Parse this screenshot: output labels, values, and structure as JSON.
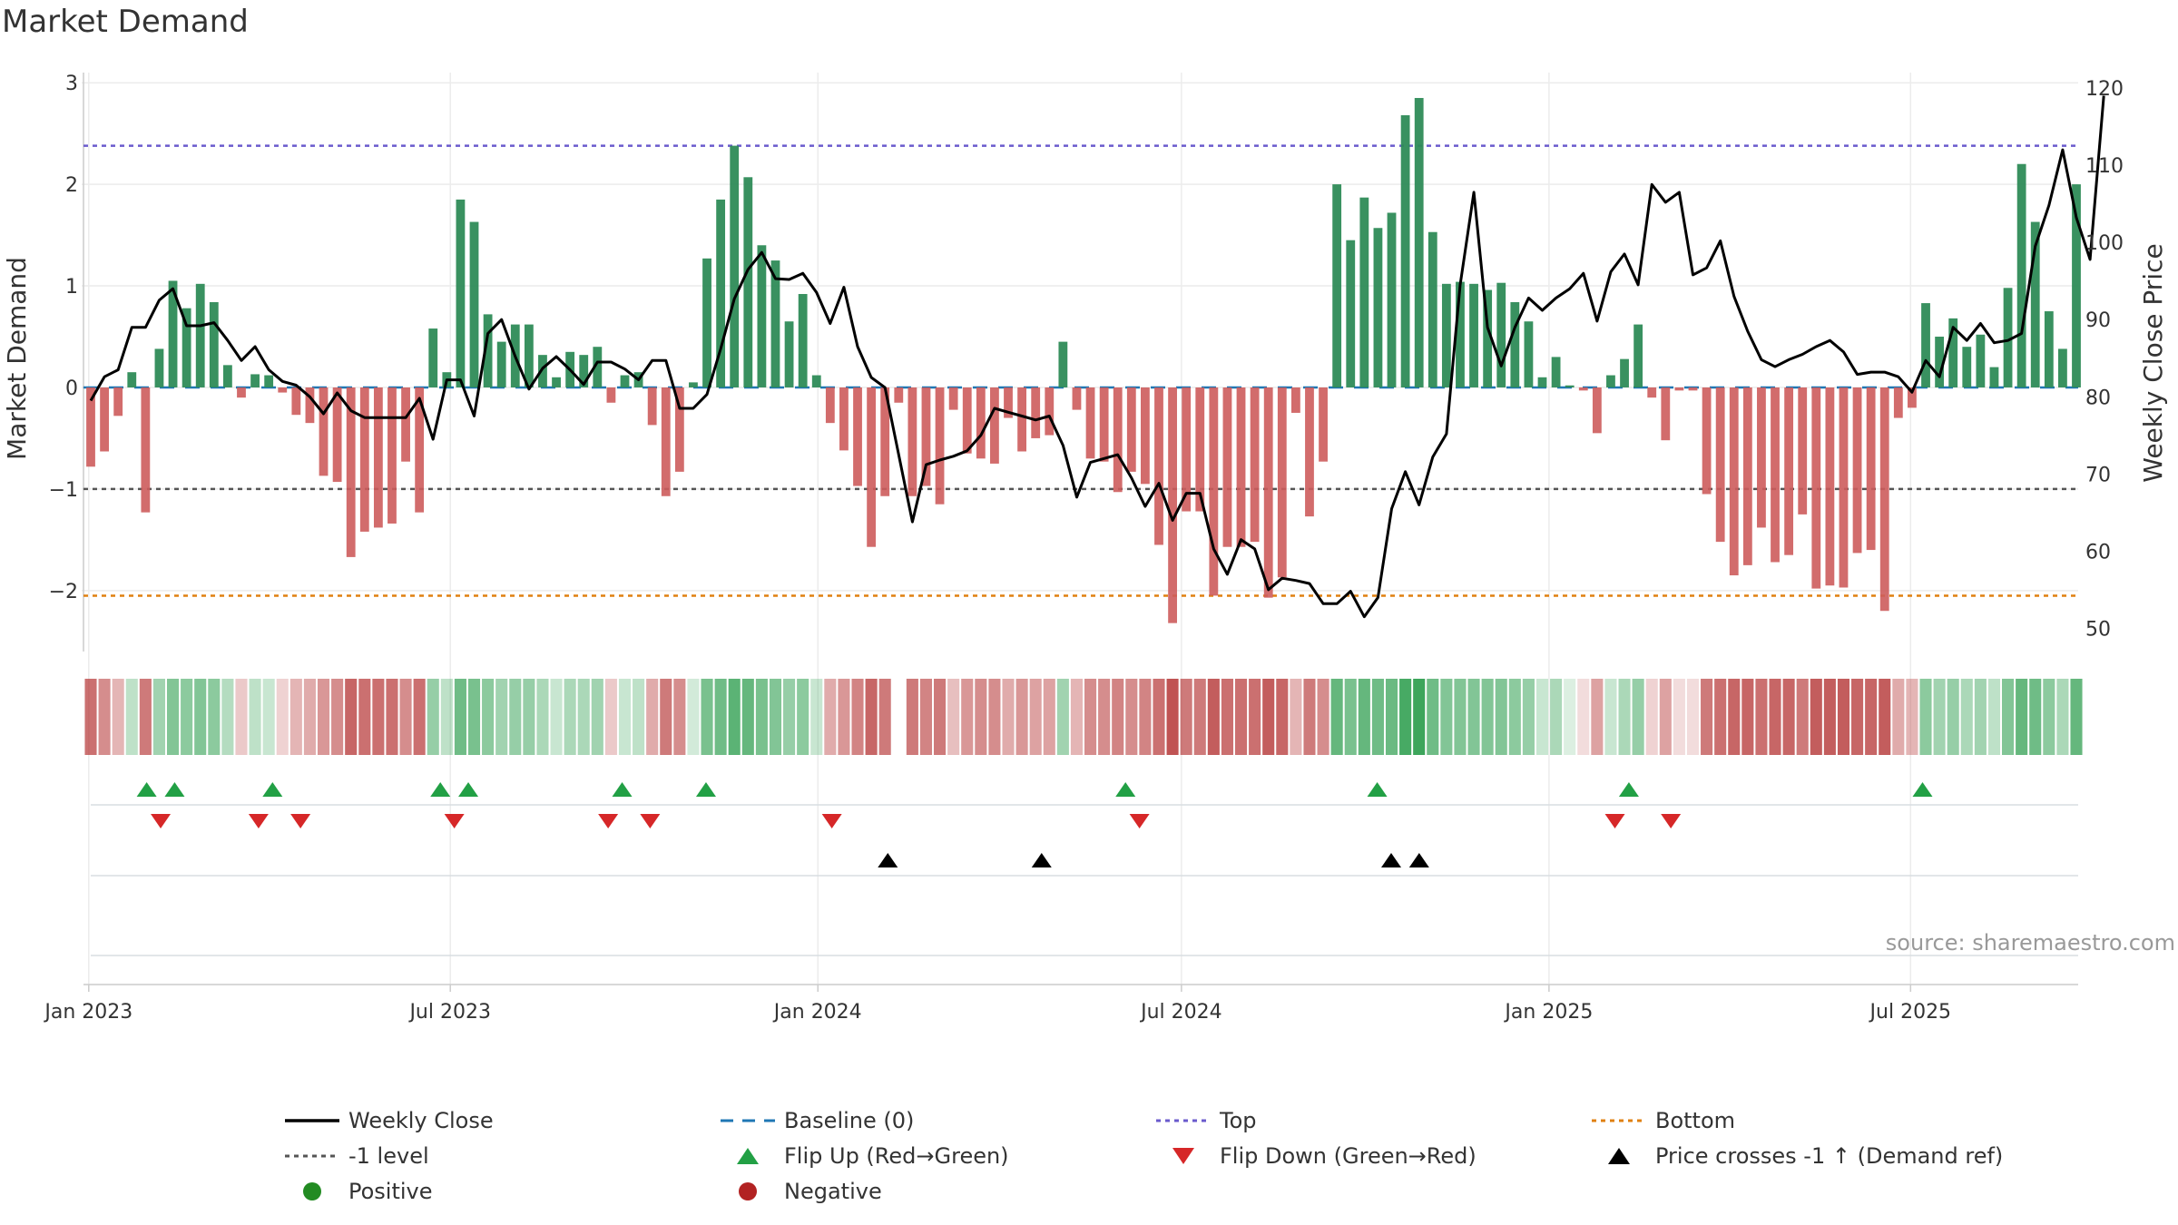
{
  "title": "Market Demand",
  "source_note": "source: sharemaestro.com",
  "colors": {
    "positive": "#2e8b57",
    "negative": "#cd5c5c",
    "price": "#000000",
    "baseline": "#1f77b4",
    "top": "#6a5acd",
    "minus1": "#555555",
    "bottom": "#e08010",
    "flip_up": "#22a045",
    "flip_down": "#d62728"
  },
  "chart_data": {
    "type": "bar",
    "title": "Market Demand",
    "ylabel": "Market Demand",
    "y2label": "Weekly Close Price",
    "ylim": [
      -2.6,
      3.1
    ],
    "y2lim": [
      47,
      122
    ],
    "yticks": [
      -2,
      -1,
      0,
      1,
      2,
      3
    ],
    "yticklabels": [
      "−2",
      "−1",
      "0",
      "1",
      "2",
      "3"
    ],
    "y2ticks": [
      50,
      60,
      70,
      80,
      90,
      100,
      110,
      120
    ],
    "x_start": "2023-01-02",
    "x_end": "2025-09-22",
    "xticks": [
      {
        "date": "2023-01-01",
        "label": "Jan 2023"
      },
      {
        "date": "2023-07-01",
        "label": "Jul 2023"
      },
      {
        "date": "2024-01-01",
        "label": "Jan 2024"
      },
      {
        "date": "2024-07-01",
        "label": "Jul 2024"
      },
      {
        "date": "2025-01-01",
        "label": "Jan 2025"
      },
      {
        "date": "2025-07-01",
        "label": "Jul 2025"
      }
    ],
    "reference_lines": {
      "baseline": 0,
      "top": 2.38,
      "minus1": -1,
      "bottom": -2.05
    },
    "series": [
      {
        "name": "Market Demand",
        "values": [
          -0.78,
          -0.63,
          -0.28,
          0.15,
          -1.23,
          0.38,
          1.05,
          0.78,
          1.02,
          0.84,
          0.22,
          -0.1,
          0.13,
          0.12,
          -0.05,
          -0.27,
          -0.35,
          -0.87,
          -0.93,
          -1.67,
          -1.42,
          -1.38,
          -1.34,
          -0.73,
          -1.23,
          0.58,
          0.15,
          1.85,
          1.63,
          0.72,
          0.45,
          0.62,
          0.62,
          0.32,
          0.1,
          0.35,
          0.32,
          0.4,
          -0.15,
          0.12,
          0.15,
          -0.37,
          -1.07,
          -0.83,
          0.05,
          1.27,
          1.85,
          2.38,
          2.07,
          1.4,
          1.25,
          0.65,
          0.92,
          0.12,
          -0.35,
          -0.62,
          -0.97,
          -1.57,
          -1.07,
          -0.15,
          -1.07,
          -0.97,
          -1.15,
          -0.22,
          -0.65,
          -0.7,
          -0.75,
          -0.3,
          -0.63,
          -0.5,
          -0.47,
          0.45,
          -0.22,
          -0.7,
          -0.73,
          -1.03,
          -0.83,
          -0.95,
          -1.55,
          -2.32,
          -1.22,
          -1.22,
          -2.05,
          -1.57,
          -1.57,
          -1.52,
          -2.07,
          -1.87,
          -0.25,
          -1.27,
          -0.73,
          2.0,
          1.45,
          1.87,
          1.57,
          1.72,
          2.68,
          2.85,
          1.53,
          1.02,
          1.04,
          1.02,
          0.96,
          1.03,
          0.84,
          0.65,
          0.1,
          0.3,
          0.02,
          -0.03,
          -0.45,
          0.12,
          0.28,
          0.62,
          -0.1,
          -0.52,
          -0.03,
          -0.03,
          -1.05,
          -1.52,
          -1.85,
          -1.75,
          -1.38,
          -1.72,
          -1.65,
          -1.25,
          -1.98,
          -1.95,
          -1.97,
          -1.63,
          -1.6,
          -2.2,
          -0.3,
          -0.2,
          0.83,
          0.5,
          0.68,
          0.4,
          0.52,
          0.2,
          0.98,
          2.2,
          1.63,
          0.75,
          0.38,
          2.0
        ]
      },
      {
        "name": "Weekly Close",
        "values": [
          79.5,
          82.6,
          83.5,
          89.0,
          89.0,
          92.5,
          94.0,
          89.2,
          89.2,
          89.6,
          87.3,
          84.7,
          86.5,
          83.5,
          82.0,
          81.5,
          80.0,
          77.8,
          80.5,
          78.2,
          77.3,
          77.3,
          77.3,
          77.3,
          79.8,
          74.5,
          82.2,
          82.2,
          77.5,
          88.2,
          90.0,
          85.2,
          81.0,
          83.7,
          85.2,
          83.5,
          81.6,
          84.5,
          84.5,
          83.6,
          82.2,
          84.7,
          84.7,
          78.5,
          78.5,
          80.3,
          86.2,
          92.7,
          96.5,
          98.7,
          95.3,
          95.2,
          96.0,
          93.5,
          89.5,
          94.2,
          86.5,
          82.5,
          81.2,
          72.5,
          63.8,
          71.2,
          71.8,
          72.3,
          73.0,
          75.0,
          78.5,
          78.0,
          77.5,
          77.0,
          77.5,
          73.7,
          67.0,
          71.5,
          72.0,
          72.5,
          69.5,
          65.8,
          68.8,
          64.0,
          67.5,
          67.5,
          60.3,
          57.0,
          61.5,
          60.3,
          55.0,
          56.5,
          56.2,
          55.8,
          53.2,
          53.2,
          54.8,
          51.5,
          54.0,
          65.5,
          70.3,
          66.0,
          72.2,
          75.2,
          94.5,
          106.5,
          89.0,
          84.0,
          89.0,
          92.8,
          91.2,
          92.8,
          94.0,
          96.0,
          89.8,
          96.2,
          98.5,
          94.5,
          107.5,
          105.2,
          106.5,
          95.8,
          96.7,
          100.2,
          93.0,
          88.5,
          84.8,
          83.9,
          84.8,
          85.5,
          86.5,
          87.3,
          85.8,
          82.9,
          83.2,
          83.2,
          82.6,
          80.6,
          84.7,
          82.6,
          89.0,
          87.3,
          89.5,
          87.0,
          87.3,
          88.2,
          99.5,
          104.8,
          112.0,
          103.2,
          97.8,
          119.0
        ]
      }
    ],
    "strip_levels": [
      -0.6,
      -0.45,
      -0.25,
      0.2,
      -0.55,
      0.35,
      0.5,
      0.45,
      0.5,
      0.45,
      0.25,
      -0.15,
      0.2,
      0.15,
      -0.1,
      -0.25,
      -0.3,
      -0.4,
      -0.45,
      -0.65,
      -0.6,
      -0.6,
      -0.6,
      -0.45,
      -0.6,
      0.4,
      0.2,
      0.6,
      0.55,
      0.45,
      0.35,
      0.4,
      0.4,
      0.3,
      0.15,
      0.3,
      0.3,
      0.35,
      -0.15,
      0.15,
      0.2,
      -0.3,
      -0.55,
      -0.45,
      0.1,
      0.55,
      0.6,
      0.7,
      0.65,
      0.55,
      0.5,
      0.4,
      0.45,
      0.15,
      -0.3,
      -0.4,
      -0.5,
      -0.65,
      -0.55,
      null,
      -0.55,
      -0.5,
      -0.55,
      -0.2,
      -0.4,
      -0.45,
      -0.45,
      -0.3,
      -0.4,
      -0.35,
      -0.35,
      0.35,
      -0.25,
      -0.45,
      -0.45,
      -0.5,
      -0.45,
      -0.5,
      -0.6,
      -0.75,
      -0.55,
      -0.55,
      -0.7,
      -0.6,
      -0.6,
      -0.6,
      -0.7,
      -0.65,
      -0.25,
      -0.55,
      -0.45,
      0.65,
      0.55,
      0.65,
      0.6,
      0.62,
      0.8,
      0.85,
      0.6,
      0.5,
      0.5,
      0.5,
      0.5,
      0.5,
      0.45,
      0.4,
      0.15,
      0.3,
      0.05,
      -0.05,
      -0.35,
      0.15,
      0.3,
      0.4,
      -0.1,
      -0.35,
      -0.05,
      -0.05,
      -0.55,
      -0.6,
      -0.65,
      -0.65,
      -0.6,
      -0.65,
      -0.65,
      -0.55,
      -0.7,
      -0.7,
      -0.7,
      -0.65,
      -0.65,
      -0.7,
      -0.3,
      -0.25,
      0.45,
      0.35,
      0.4,
      0.3,
      0.35,
      0.2,
      0.5,
      0.65,
      0.6,
      0.45,
      0.3,
      0.65
    ],
    "flip_up": [
      "2023-01-30",
      "2023-02-13",
      "2023-04-03",
      "2023-06-26",
      "2023-07-10",
      "2023-09-25",
      "2023-11-06",
      "2024-06-03",
      "2024-10-07",
      "2025-02-10",
      "2025-07-07"
    ],
    "flip_down": [
      "2023-02-06",
      "2023-03-27",
      "2023-04-17",
      "2023-07-03",
      "2023-09-18",
      "2023-10-09",
      "2024-01-08",
      "2024-06-10",
      "2025-02-03",
      "2025-03-03"
    ],
    "price_cross": [
      "2024-02-05",
      "2024-04-22",
      "2024-10-14",
      "2024-10-28"
    ]
  },
  "legend": [
    {
      "label": "Weekly Close",
      "marker": "line",
      "color": "#000000"
    },
    {
      "label": "Baseline (0)",
      "marker": "dashed",
      "color": "#1f77b4"
    },
    {
      "label": "Top",
      "marker": "dotted",
      "color": "#6a5acd"
    },
    {
      "label": "Bottom",
      "marker": "dotted",
      "color": "#e08010"
    },
    {
      "label": "-1 level",
      "marker": "dotted",
      "color": "#555555"
    },
    {
      "label": "Flip Up (Red→Green)",
      "marker": "tri-up",
      "color": "#22a045"
    },
    {
      "label": "Flip Down (Green→Red)",
      "marker": "tri-down",
      "color": "#d62728"
    },
    {
      "label": "Price crosses -1 ↑ (Demand ref)",
      "marker": "tri-up",
      "color": "#000000"
    },
    {
      "label": "Positive",
      "marker": "dot",
      "color": "#228b22"
    },
    {
      "label": "Negative",
      "marker": "dot",
      "color": "#b22222"
    }
  ]
}
